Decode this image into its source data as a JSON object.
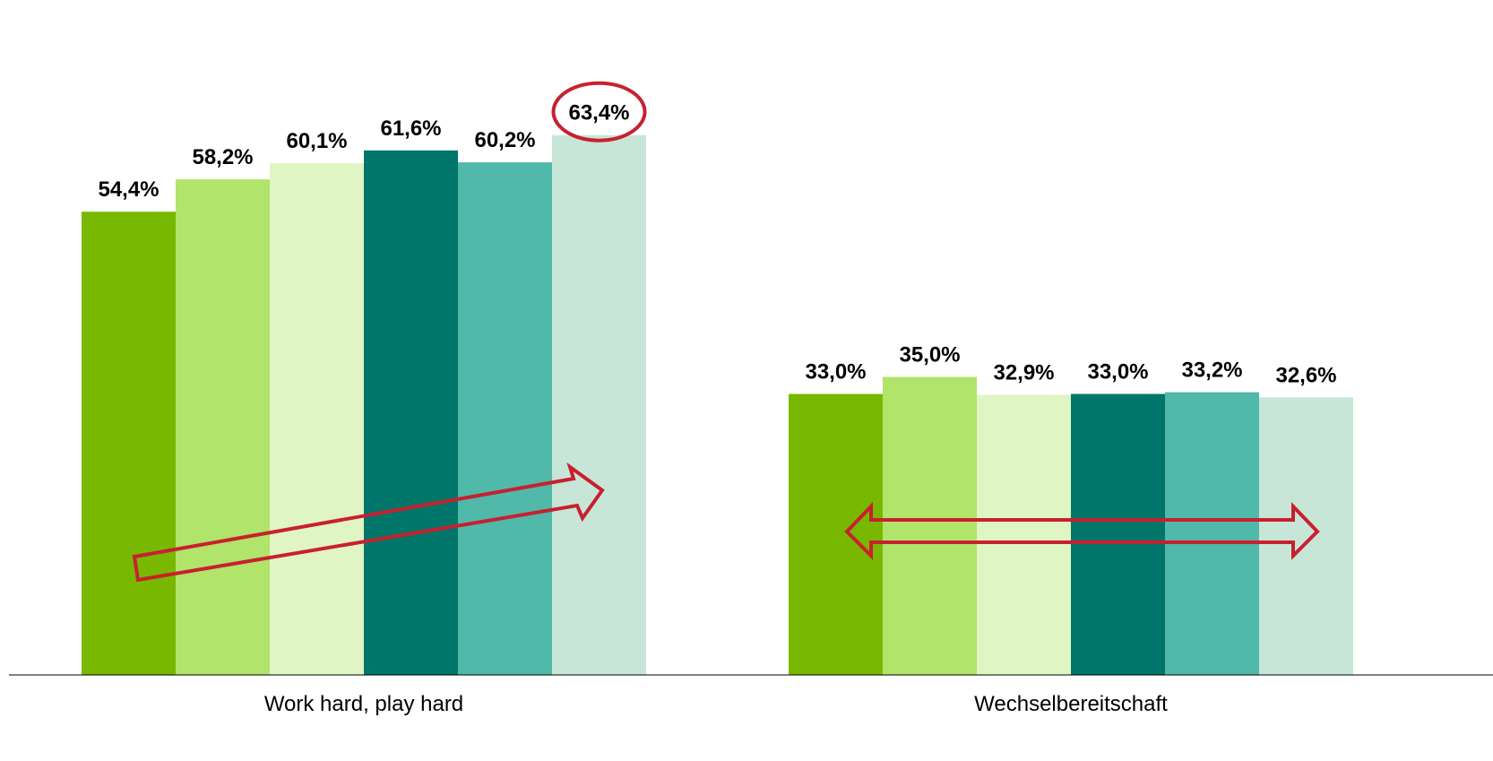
{
  "chart_data": {
    "type": "bar",
    "title": "",
    "xlabel": "",
    "ylabel": "",
    "ylim": [
      0,
      66
    ],
    "grid": false,
    "legend": "none",
    "categories": [
      "Work hard, play hard",
      "Wechselbereitschaft"
    ],
    "series": [
      {
        "color": "#78b800",
        "values": [
          54.4,
          33.0
        ],
        "labels": [
          "54,4%",
          "33,0%"
        ]
      },
      {
        "color": "#b0e46a",
        "values": [
          58.2,
          35.0
        ],
        "labels": [
          "58,2%",
          "35,0%"
        ]
      },
      {
        "color": "#dff5c4",
        "values": [
          60.1,
          32.9
        ],
        "labels": [
          "60,1%",
          "32,9%"
        ]
      },
      {
        "color": "#00766a",
        "values": [
          61.6,
          33.0
        ],
        "labels": [
          "61,6%",
          "33,0%"
        ]
      },
      {
        "color": "#50b9aa",
        "values": [
          60.2,
          33.2
        ],
        "labels": [
          "60,2%",
          "33,2%"
        ]
      },
      {
        "color": "#c8e6d8",
        "values": [
          63.4,
          32.6
        ],
        "labels": [
          "63,4%",
          "32,6%"
        ]
      }
    ],
    "annotations": [
      {
        "type": "ellipse-highlight",
        "category": 0,
        "series": 5,
        "color": "#c8202f"
      },
      {
        "type": "rising-arrow",
        "category": 0,
        "color": "#c8202f"
      },
      {
        "type": "double-arrow",
        "category": 1,
        "color": "#c8202f"
      }
    ]
  }
}
